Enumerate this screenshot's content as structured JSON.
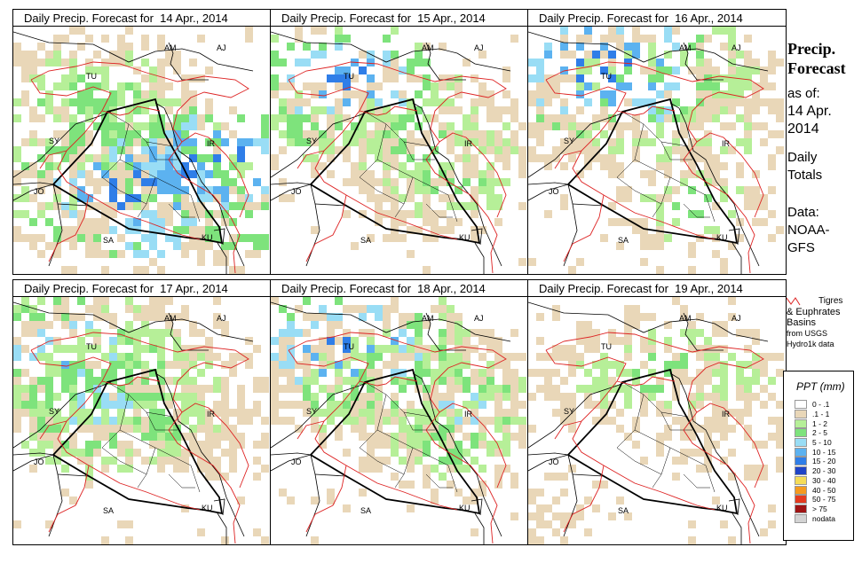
{
  "panels": [
    {
      "title": "Daily Precip. Forecast for  14 Apr., 2014",
      "key": "p14"
    },
    {
      "title": "Daily Precip. Forecast for  15 Apr., 2014",
      "key": "p15"
    },
    {
      "title": "Daily Precip. Forecast for  16 Apr., 2014",
      "key": "p16"
    },
    {
      "title": "Daily Precip. Forecast for  17 Apr., 2014",
      "key": "p17"
    },
    {
      "title": "Daily Precip. Forecast for  18 Apr., 2014",
      "key": "p18"
    },
    {
      "title": "Daily Precip. Forecast for  19 Apr., 2014",
      "key": "p19"
    }
  ],
  "map_labels": [
    "AM",
    "AJ",
    "TU",
    "SY",
    "IR",
    "JO",
    "SA",
    "KU"
  ],
  "sidebar": {
    "title_line1": "Precip.",
    "title_line2": "Forecast",
    "asof_line1": "as of:",
    "asof_line2": "14 Apr.",
    "asof_line3": "2014",
    "totals_line1": "Daily",
    "totals_line2": "Totals",
    "data_line1": "Data:",
    "data_line2": "NOAA-",
    "data_line3": "GFS"
  },
  "basin_legend": {
    "line1": "Tigres",
    "line2": "& Euphrates",
    "line3": "Basins",
    "line4": "from USGS",
    "line5": "Hydro1k data",
    "color": "#dd2222"
  },
  "legend": {
    "title": "PPT (mm)",
    "items": [
      {
        "label": "0 - .1",
        "color": "#ffffff"
      },
      {
        "label": ".1 - 1",
        "color": "#e9d7b8"
      },
      {
        "label": "1 - 2",
        "color": "#b6ef98"
      },
      {
        "label": "2 - 5",
        "color": "#7ee37c"
      },
      {
        "label": "5 - 10",
        "color": "#99ddf5"
      },
      {
        "label": "10 - 15",
        "color": "#5cb2f0"
      },
      {
        "label": "15 - 20",
        "color": "#2f7ee8"
      },
      {
        "label": "20 - 30",
        "color": "#1f44c8"
      },
      {
        "label": "30 - 40",
        "color": "#f5dc57"
      },
      {
        "label": "40 - 50",
        "color": "#f59a1e"
      },
      {
        "label": "50 - 75",
        "color": "#e53a1e"
      },
      {
        "label": "> 75",
        "color": "#a01414"
      },
      {
        "label": "nodata",
        "color": "#d3d3d3"
      }
    ]
  }
}
